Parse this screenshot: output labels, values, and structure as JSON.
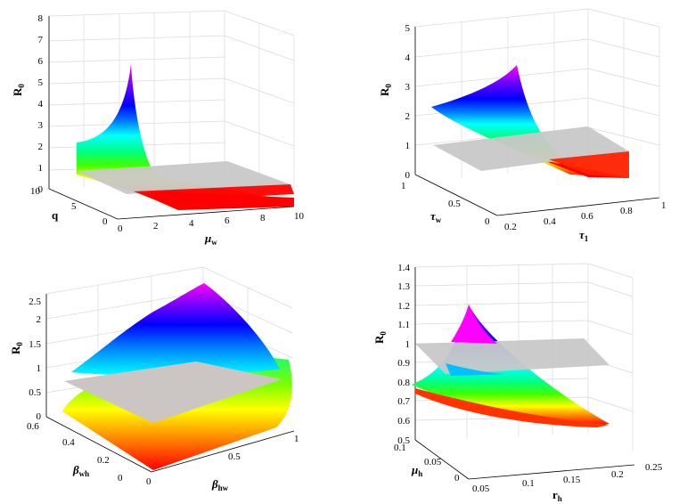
{
  "chart_data": [
    {
      "type": "surface",
      "id": "p1",
      "zlabel": "R",
      "zlabel_sub": "0",
      "xlabel": "μ",
      "xlabel_sub": "w",
      "ylabel": "q",
      "ylabel_sub": "",
      "zlim": [
        0,
        8
      ],
      "z_ticks": [
        "0",
        "1",
        "2",
        "3",
        "4",
        "5",
        "6",
        "7",
        "8"
      ],
      "x_ticks": [
        "0",
        "2",
        "4",
        "6",
        "8",
        "10"
      ],
      "y_ticks": [
        "0",
        "5",
        "10"
      ],
      "plane_value": 1,
      "surface_corner_values": [
        2.1,
        5.7,
        0.0,
        0.0
      ],
      "colors": {
        "high": "#ff00ff",
        "low": "#ff0000",
        "plane": "#c8c8c8"
      }
    },
    {
      "type": "surface",
      "id": "p2",
      "zlabel": "R",
      "zlabel_sub": "0",
      "xlabel": "τ",
      "xlabel_sub": "1",
      "ylabel": "τ",
      "ylabel_sub": "w",
      "zlim": [
        0,
        5
      ],
      "z_ticks": [
        "0",
        "1",
        "2",
        "3",
        "4",
        "5"
      ],
      "x_ticks": [
        "0.2",
        "0.4",
        "0.6",
        "0.8",
        "1"
      ],
      "y_ticks": [
        "0",
        "0.5",
        "1"
      ],
      "plane_value": 1,
      "surface_corner_values": [
        2.4,
        3.7,
        0.0,
        0.0
      ],
      "colors": {
        "high": "#ff00ff",
        "low": "#ff0000",
        "plane": "#c8c8c8"
      }
    },
    {
      "type": "surface",
      "id": "p3",
      "zlabel": "R",
      "zlabel_sub": "0",
      "xlabel": "β",
      "xlabel_sub": "hw",
      "ylabel": "β",
      "ylabel_sub": "wh",
      "zlim": [
        0,
        2.5
      ],
      "z_ticks": [
        "0",
        "0.5",
        "1",
        "1.5",
        "2",
        "2.5"
      ],
      "x_ticks": [
        "0",
        "0.5",
        "1"
      ],
      "y_ticks": [
        "0",
        "0.2",
        "0.4",
        "0.6"
      ],
      "plane_value": 1,
      "surface_corner_values": [
        0.0,
        0.0,
        2.7,
        0.0
      ],
      "colors": {
        "high": "#ff00ff",
        "low": "#ff0000",
        "plane": "#c8c8c8"
      }
    },
    {
      "type": "surface",
      "id": "p4",
      "zlabel": "R",
      "zlabel_sub": "0",
      "xlabel": "r",
      "xlabel_sub": "h",
      "ylabel": "μ",
      "ylabel_sub": "h",
      "zlim": [
        0.5,
        1.4
      ],
      "z_ticks": [
        "0.5",
        "0.6",
        "0.7",
        "0.8",
        "0.9",
        "1",
        "1.1",
        "1.2",
        "1.3",
        "1.4"
      ],
      "x_ticks": [
        "0.05",
        "0.1",
        "0.15",
        "0.2",
        "0.25"
      ],
      "y_ticks": [
        "0",
        "0.05",
        "0.1"
      ],
      "plane_value": 1,
      "surface_corner_values": [
        0.78,
        1.22,
        0.58,
        0.58
      ],
      "colors": {
        "high": "#ff00ff",
        "low": "#ff0000",
        "plane": "#c8c8c8"
      }
    }
  ]
}
